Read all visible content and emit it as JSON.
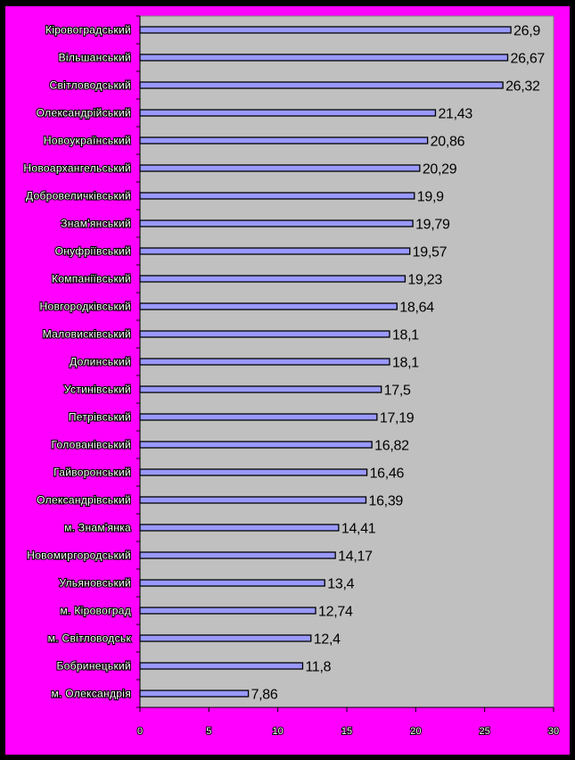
{
  "colors": {
    "page_background": "#000000",
    "frame_background": "#FF00FF",
    "plot_background": "#C0C0C0",
    "bar_fill": "#9999FF",
    "bar_outline": "#000000"
  },
  "chart_data": {
    "type": "bar",
    "orientation": "horizontal",
    "title": "",
    "xlabel": "",
    "ylabel": "",
    "xlim": [
      0,
      30
    ],
    "x_ticks": [
      0,
      5,
      10,
      15,
      20,
      25,
      30
    ],
    "grid": false,
    "legend": "none",
    "categories": [
      "Кіровоградський",
      "Вільшанський",
      "Світловодський",
      "Олександрійський",
      "Новоукраїнський",
      "Новоархангельський",
      "Добровеличківський",
      "Знам'янський",
      "Онуфріївський",
      "Компаніївський",
      "Новгородківський",
      "Маловисківський",
      "Долинський",
      "Устинівський",
      "Петрівський",
      "Голованівський",
      "Гайворонський",
      "Олександрівський",
      "м. Знам'янка",
      "Новомиргородський",
      "Ульяновський",
      "м. Кіровоград",
      "м. Світловодськ",
      "Бобринецький",
      "м. Олександрія"
    ],
    "values": [
      26.9,
      26.67,
      26.32,
      21.43,
      20.86,
      20.29,
      19.9,
      19.79,
      19.57,
      19.23,
      18.64,
      18.1,
      18.1,
      17.5,
      17.19,
      16.82,
      16.46,
      16.39,
      14.41,
      14.17,
      13.4,
      12.74,
      12.4,
      11.8,
      7.86
    ],
    "value_labels": [
      "26,9",
      "26,67",
      "26,32",
      "21,43",
      "20,86",
      "20,29",
      "19,9",
      "19,79",
      "19,57",
      "19,23",
      "18,64",
      "18,1",
      "18,1",
      "17,5",
      "17,19",
      "16,82",
      "16,46",
      "16,39",
      "14,41",
      "14,17",
      "13,4",
      "12,74",
      "12,4",
      "11,8",
      "7,86"
    ]
  }
}
